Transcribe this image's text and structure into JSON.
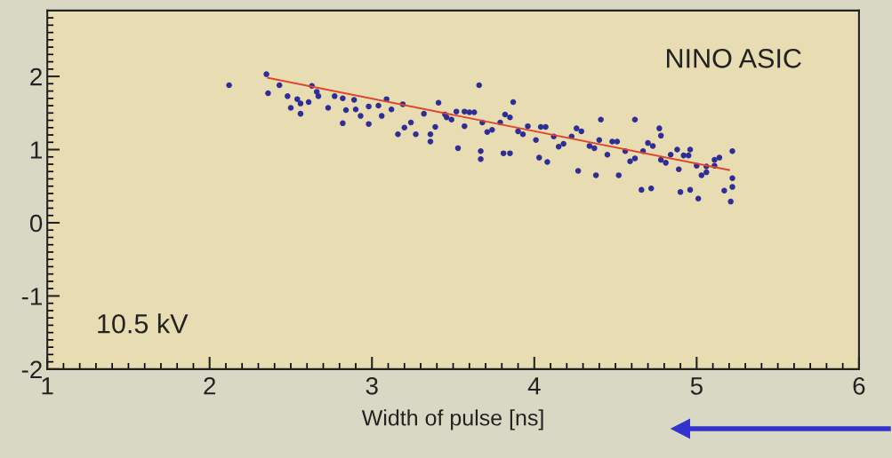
{
  "chart_data": {
    "type": "scatter",
    "xlabel": "Width of pulse [ns]",
    "annotations": [
      "NINO ASIC",
      "10.5 kV"
    ],
    "xlim": [
      1,
      6
    ],
    "xticks": [
      1,
      2,
      3,
      4,
      5,
      6
    ],
    "ylim": [
      -2,
      2.9
    ],
    "yticks": [
      -2,
      -1,
      0,
      1,
      2
    ],
    "grid": false,
    "series": [
      {
        "marker": "circle",
        "color": "#2e2e96",
        "x": [
          2.12,
          2.35,
          2.36,
          2.43,
          2.48,
          2.5,
          2.54,
          2.56,
          2.56,
          2.61,
          2.63,
          2.66,
          2.67,
          2.73,
          2.77,
          2.82,
          2.82,
          2.84,
          2.89,
          2.9,
          2.93,
          2.98,
          2.98,
          3.04,
          3.06,
          3.09,
          3.12,
          3.16,
          3.19,
          3.2,
          3.24,
          3.27,
          3.32,
          3.36,
          3.36,
          3.39,
          3.66,
          3.87,
          4.41,
          4.62,
          4.77,
          3.45,
          3.57,
          3.53,
          3.67,
          3.67,
          3.81,
          3.85,
          4.03,
          4.08,
          4.27,
          4.38,
          4.52,
          4.66,
          4.72,
          4.9,
          4.96,
          5.01,
          5.17,
          5.21,
          5.06,
          5.11,
          4.96,
          4.88,
          4.78,
          3.41,
          3.46,
          3.52,
          3.57,
          3.63,
          3.68,
          3.74,
          3.79,
          3.85,
          3.9,
          3.96,
          4.01,
          4.07,
          4.12,
          4.18,
          4.23,
          4.29,
          4.34,
          4.4,
          4.45,
          4.51,
          4.56,
          4.62,
          4.67,
          4.73,
          4.78,
          4.84,
          4.89,
          4.95,
          5.0,
          5.06,
          5.11,
          5.22,
          5.22,
          5.22,
          3.49,
          3.6,
          3.71,
          3.82,
          3.93,
          4.04,
          4.15,
          4.26,
          4.37,
          4.48,
          4.59,
          4.7,
          4.81,
          4.92,
          5.03,
          5.14
        ],
        "values": [
          1.88,
          2.03,
          1.77,
          1.88,
          1.73,
          1.57,
          1.69,
          1.63,
          1.49,
          1.65,
          1.87,
          1.79,
          1.73,
          1.57,
          1.73,
          1.7,
          1.36,
          1.54,
          1.68,
          1.55,
          1.46,
          1.59,
          1.35,
          1.6,
          1.46,
          1.69,
          1.55,
          1.21,
          1.62,
          1.3,
          1.37,
          1.21,
          1.49,
          1.11,
          1.21,
          1.31,
          1.88,
          1.65,
          1.41,
          1.41,
          1.29,
          1.48,
          1.52,
          1.02,
          0.98,
          0.87,
          0.95,
          0.95,
          0.89,
          0.83,
          0.71,
          0.65,
          0.65,
          0.45,
          0.47,
          0.42,
          0.45,
          0.33,
          0.44,
          0.29,
          0.77,
          0.86,
          1.0,
          1.0,
          1.19,
          1.64,
          1.44,
          1.52,
          1.32,
          1.51,
          1.37,
          1.27,
          1.37,
          1.44,
          1.25,
          1.32,
          1.13,
          1.31,
          1.18,
          1.08,
          1.18,
          1.25,
          1.05,
          1.13,
          0.93,
          1.11,
          0.98,
          0.88,
          0.98,
          1.05,
          0.86,
          0.93,
          0.73,
          0.92,
          0.78,
          0.69,
          0.78,
          0.98,
          0.61,
          0.49,
          1.41,
          1.51,
          1.24,
          1.48,
          1.21,
          1.31,
          1.04,
          1.29,
          1.02,
          1.11,
          0.84,
          1.09,
          0.82,
          0.92,
          0.65,
          0.89
        ]
      },
      {
        "type": "line",
        "color": "#e0442a",
        "x": [
          2.36,
          5.2
        ],
        "values": [
          1.98,
          0.72
        ]
      }
    ]
  }
}
